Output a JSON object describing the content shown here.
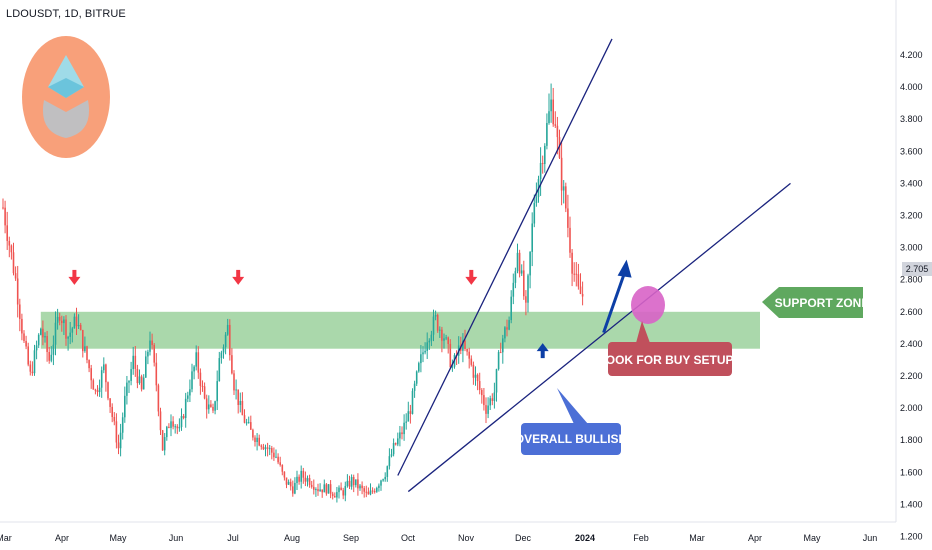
{
  "header": {
    "symbol": "LDOUSDT, 1D, BITRUE"
  },
  "price_tag": "2.705",
  "colors": {
    "bull": "#26a69a",
    "bear": "#ef5350",
    "support_zone": "#a5d6a7",
    "support_label": "#5fa85f",
    "buy_label": "#c0505c",
    "bullish_label": "#4c6fd6",
    "trendline": "#1a237e",
    "ellipse": "#d863c6"
  },
  "annotations": {
    "support_zone": "SUPPORT ZONE",
    "buy_setups": "LOOK FOR BUY SETUPS",
    "overall_bullish": "OVERALL BULLISH"
  },
  "chart_data": {
    "type": "candlestick",
    "title": "",
    "xlabel": "",
    "ylabel": "",
    "ylim": [
      1.15,
      4.3
    ],
    "yticks": [
      "1.200",
      "1.400",
      "1.600",
      "1.800",
      "2.000",
      "2.200",
      "2.400",
      "2.600",
      "2.800",
      "3.000",
      "3.200",
      "3.400",
      "3.600",
      "3.800",
      "4.000",
      "4.200"
    ],
    "xticks": [
      "Mar",
      "Apr",
      "May",
      "Jun",
      "Jul",
      "Aug",
      "Sep",
      "Oct",
      "Nov",
      "Dec",
      "2024",
      "Feb",
      "Mar",
      "Apr",
      "May",
      "Jun"
    ],
    "price_path": [
      [
        0,
        3.25
      ],
      [
        6,
        2.8
      ],
      [
        10,
        2.4
      ],
      [
        13,
        2.2
      ],
      [
        18,
        2.5
      ],
      [
        22,
        2.3
      ],
      [
        27,
        2.6
      ],
      [
        31,
        2.45
      ],
      [
        35,
        2.55
      ],
      [
        40,
        2.3
      ],
      [
        44,
        2.1
      ],
      [
        48,
        2.25
      ],
      [
        52,
        1.95
      ],
      [
        55,
        1.75
      ],
      [
        58,
        2.05
      ],
      [
        62,
        2.3
      ],
      [
        66,
        2.1
      ],
      [
        70,
        2.45
      ],
      [
        73,
        2.15
      ],
      [
        76,
        1.75
      ],
      [
        80,
        1.95
      ],
      [
        84,
        1.85
      ],
      [
        88,
        2.1
      ],
      [
        92,
        2.3
      ],
      [
        96,
        2.05
      ],
      [
        100,
        1.95
      ],
      [
        103,
        2.3
      ],
      [
        107,
        2.5
      ],
      [
        110,
        2.15
      ],
      [
        114,
        1.95
      ],
      [
        118,
        1.85
      ],
      [
        122,
        1.8
      ],
      [
        126,
        1.75
      ],
      [
        130,
        1.7
      ],
      [
        134,
        1.55
      ],
      [
        138,
        1.5
      ],
      [
        142,
        1.58
      ],
      [
        146,
        1.55
      ],
      [
        150,
        1.5
      ],
      [
        154,
        1.5
      ],
      [
        158,
        1.47
      ],
      [
        162,
        1.48
      ],
      [
        166,
        1.55
      ],
      [
        170,
        1.5
      ],
      [
        174,
        1.45
      ],
      [
        178,
        1.52
      ],
      [
        182,
        1.6
      ],
      [
        186,
        1.75
      ],
      [
        190,
        1.85
      ],
      [
        194,
        2.0
      ],
      [
        198,
        2.25
      ],
      [
        202,
        2.45
      ],
      [
        206,
        2.55
      ],
      [
        210,
        2.45
      ],
      [
        214,
        2.25
      ],
      [
        218,
        2.4
      ],
      [
        222,
        2.3
      ],
      [
        226,
        2.15
      ],
      [
        230,
        2.0
      ],
      [
        234,
        2.1
      ],
      [
        237,
        2.4
      ],
      [
        241,
        2.55
      ],
      [
        245,
        3.0
      ],
      [
        249,
        2.6
      ],
      [
        253,
        3.3
      ],
      [
        257,
        3.6
      ],
      [
        261,
        3.9
      ],
      [
        263,
        3.8
      ],
      [
        265,
        3.5
      ],
      [
        268,
        3.25
      ],
      [
        271,
        2.9
      ],
      [
        274,
        2.72
      ],
      [
        276,
        2.7
      ]
    ],
    "support_zone": [
      2.37,
      2.6
    ],
    "trendlines": [
      {
        "from": [
          188,
          1.58
        ],
        "to": [
          290,
          4.3
        ]
      },
      {
        "from": [
          193,
          1.48
        ],
        "to": [
          375,
          3.4
        ]
      }
    ],
    "down_arrows": [
      [
        34,
        2.78
      ],
      [
        112,
        2.78
      ],
      [
        223,
        2.78
      ]
    ],
    "up_arrows": [
      [
        257,
        2.38
      ]
    ],
    "target_arrow": {
      "from": [
        286,
        2.47
      ],
      "to": [
        296,
        2.9
      ]
    },
    "last_price": 2.705
  }
}
